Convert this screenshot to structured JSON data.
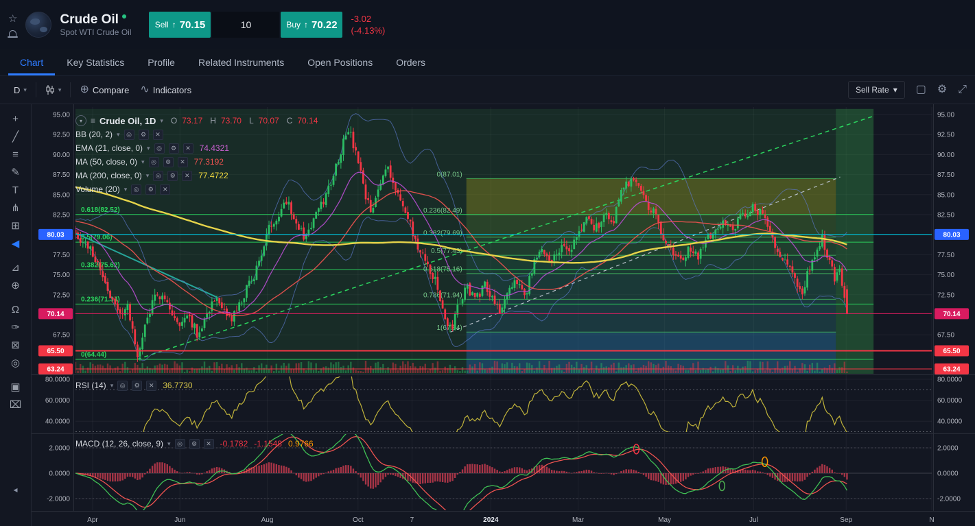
{
  "header": {
    "symbol": "Crude Oil",
    "subtitle": "Spot WTI Crude Oil",
    "sell_label": "Sell",
    "sell_arrow": "↑",
    "sell_price": "70.15",
    "quantity": "10",
    "buy_label": "Buy",
    "buy_arrow": "↑",
    "buy_price": "70.22",
    "change": "-3.02",
    "change_pct": "(-4.13%)",
    "star_glyph": "☆"
  },
  "nav": {
    "tabs": [
      {
        "label": "Chart",
        "active": true
      },
      {
        "label": "Key Statistics",
        "active": false
      },
      {
        "label": "Profile",
        "active": false
      },
      {
        "label": "Related Instruments",
        "active": false
      },
      {
        "label": "Open Positions",
        "active": false
      },
      {
        "label": "Orders",
        "active": false
      }
    ]
  },
  "toolbar": {
    "interval": "D",
    "caret": "▾",
    "compare_icon": "⊕",
    "compare_label": "Compare",
    "indicators_icon": "∿",
    "indicators_label": "Indicators",
    "sell_rate_label": "Sell Rate",
    "snapshot_glyph": "▢",
    "gear_glyph": "⚙",
    "fullscreen_glyph": "⤢"
  },
  "left_toolbar": {
    "collapse_glyph": "◂",
    "tools": [
      {
        "name": "crosshair-tool",
        "glyph": "+"
      },
      {
        "name": "trend-line-tool",
        "glyph": "╱"
      },
      {
        "name": "parallel-lines-tool",
        "glyph": "≡"
      },
      {
        "name": "brush-tool",
        "glyph": "✎"
      },
      {
        "name": "text-tool",
        "glyph": "T"
      },
      {
        "name": "pitchfork-tool",
        "glyph": "⋔"
      },
      {
        "name": "patterns-tool",
        "glyph": "⊞"
      },
      {
        "name": "arrow-tool",
        "glyph": "◀",
        "color": "#2979ff",
        "gap": true
      },
      {
        "name": "ruler-tool",
        "glyph": "⊿"
      },
      {
        "name": "zoom-in-tool",
        "glyph": "⊕",
        "gap": true
      },
      {
        "name": "magnet-tool",
        "glyph": "Ω"
      },
      {
        "name": "draw-tool",
        "glyph": "✑"
      },
      {
        "name": "lock-tool",
        "glyph": "⊠"
      },
      {
        "name": "hide-drawings-tool",
        "glyph": "◎",
        "gap": true
      },
      {
        "name": "object-tree-tool",
        "glyph": "▣"
      },
      {
        "name": "remove-drawings-tool",
        "glyph": "⌧"
      }
    ]
  },
  "legend": {
    "icon_glyphs": {
      "collapse": "▾",
      "menu": "≡",
      "eye": "◎",
      "settings": "⚙",
      "close": "✕"
    },
    "main": {
      "title": "Crude Oil, 1D",
      "ohlc": [
        {
          "k": "O",
          "v": "73.17"
        },
        {
          "k": "H",
          "v": "73.70"
        },
        {
          "k": "L",
          "v": "70.07"
        },
        {
          "k": "C",
          "v": "70.14"
        }
      ]
    },
    "indicators": [
      {
        "name": "BB (20, 2)",
        "value": "",
        "color": ""
      },
      {
        "name": "EMA (21, close, 0)",
        "value": "74.4321",
        "color": "#c95fd0"
      },
      {
        "name": "MA (50, close, 0)",
        "value": "77.3192",
        "color": "#ef5350"
      },
      {
        "name": "MA (200, close, 0)",
        "value": "77.4722",
        "color": "#f0d93f"
      },
      {
        "name": "Volume (20)",
        "value": "",
        "color": ""
      }
    ]
  },
  "rsi_panel": {
    "label": "RSI (14)",
    "value": "36.7730",
    "color": "#d8c84a"
  },
  "macd_panel": {
    "label": "MACD (12, 26, close, 9)",
    "values": [
      {
        "text": "-0.1782",
        "color": "#f23645"
      },
      {
        "text": "-1.1548",
        "color": "#f23645"
      },
      {
        "text": "0.9766",
        "color": "#ff9800"
      }
    ]
  },
  "chart_data": {
    "type": "candlestick",
    "symbol": "Crude Oil, 1D",
    "ohlc_display": {
      "O": 73.17,
      "H": 73.7,
      "L": 70.07,
      "C": 70.14
    },
    "last_price": 70.14,
    "price_ticks": [
      95.0,
      92.5,
      90.0,
      87.5,
      85.0,
      82.5,
      77.5,
      75.0,
      72.5,
      67.5
    ],
    "price_badges": [
      {
        "price": 80.03,
        "bg": "#2962ff",
        "line": "#00bcd4",
        "width": 1.3
      },
      {
        "price": 70.14,
        "bg": "#d81b60",
        "line": "#e91e63",
        "width": 1
      },
      {
        "price": 65.5,
        "bg": "#f23645",
        "line": "#f23645",
        "width": 2
      },
      {
        "price": 63.24,
        "bg": "#f23645",
        "line": "#f23645",
        "width": 1
      }
    ],
    "time_labels": [
      {
        "label": "Apr",
        "f": 0.02
      },
      {
        "label": "Jun",
        "f": 0.122
      },
      {
        "label": "Aug",
        "f": 0.224
      },
      {
        "label": "Oct",
        "f": 0.33
      },
      {
        "label": "7",
        "f": 0.393
      },
      {
        "label": "2024",
        "f": 0.485,
        "major": true
      },
      {
        "label": "Mar",
        "f": 0.587
      },
      {
        "label": "May",
        "f": 0.688
      },
      {
        "label": "Jul",
        "f": 0.792
      },
      {
        "label": "Sep",
        "f": 0.9
      },
      {
        "label": "N",
        "f": 1.0
      }
    ],
    "fib_main": {
      "x0": 0.0,
      "x1": 0.932,
      "color": "#2bd45e",
      "levels": [
        {
          "label": "0.618(82.52)",
          "price": 82.52
        },
        {
          "label": "0.5(79.06)",
          "price": 79.06
        },
        {
          "label": "0.382(75.62)",
          "price": 75.62
        },
        {
          "label": "0.236(71.34)",
          "price": 71.34
        },
        {
          "label": "0(64.44)",
          "price": 64.44
        }
      ]
    },
    "fib_secondary": {
      "x0": 0.4565,
      "x1": 0.888,
      "color": "#3fae5a",
      "levels": [
        {
          "label": "0(87.01)",
          "price": 87.01
        },
        {
          "label": "0.236(82.49)",
          "price": 82.49
        },
        {
          "label": "0.382(79.69)",
          "price": 79.69
        },
        {
          "label": "0.5(77.43)",
          "price": 77.43
        },
        {
          "label": "0.618(75.16)",
          "price": 75.16
        },
        {
          "label": "0.786(71.94)",
          "price": 71.94
        },
        {
          "label": "1(67.84)",
          "price": 67.84
        }
      ],
      "bands": [
        {
          "p0": 87.01,
          "p1": 82.49,
          "color": "rgba(155,150,30,0.38)"
        },
        {
          "p0": 82.49,
          "p1": 79.69,
          "color": "rgba(110,160,50,0.20)"
        },
        {
          "p0": 79.69,
          "p1": 77.43,
          "color": "rgba(70,160,90,0.16)"
        },
        {
          "p0": 77.43,
          "p1": 75.16,
          "color": "rgba(50,165,130,0.13)"
        },
        {
          "p0": 75.16,
          "p1": 71.94,
          "color": "rgba(40,160,170,0.12)"
        },
        {
          "p0": 71.94,
          "p1": 67.84,
          "color": "rgba(45,130,200,0.15)"
        },
        {
          "p0": 67.84,
          "p1": 62.5,
          "color": "rgba(40,120,220,0.30)"
        }
      ]
    },
    "regions": [
      {
        "x0": 0.0,
        "x1": 0.932,
        "p0": 95.7,
        "p1": 62.5,
        "color": "rgba(47,130,60,0.20)"
      },
      {
        "x0": 0.888,
        "x1": 0.932,
        "p0": 95.7,
        "p1": 62.5,
        "color": "rgba(60,170,80,0.22)"
      }
    ],
    "trend_lines": [
      {
        "x0": 0.0,
        "p0": 80.2,
        "x1": 0.165,
        "p1": 72.2,
        "color": "#26a69a",
        "w": 2,
        "dash": ""
      },
      {
        "x0": 0.072,
        "p0": 64.44,
        "x1": 0.932,
        "p1": 94.8,
        "color": "#2bd45e",
        "w": 1.5,
        "dash": "6,5"
      },
      {
        "x0": 0.438,
        "p0": 67.84,
        "x1": 0.893,
        "p1": 87.2,
        "color": "#b9c2cc",
        "w": 1.2,
        "dash": "5,5"
      }
    ],
    "price_path": [
      [
        0.0,
        80.5
      ],
      [
        0.008,
        79.2
      ],
      [
        0.02,
        77.8
      ],
      [
        0.028,
        76.0
      ],
      [
        0.036,
        73.8
      ],
      [
        0.044,
        71.5
      ],
      [
        0.052,
        69.8
      ],
      [
        0.06,
        71.5
      ],
      [
        0.068,
        67.0
      ],
      [
        0.074,
        64.6
      ],
      [
        0.082,
        69.2
      ],
      [
        0.092,
        71.8
      ],
      [
        0.102,
        73.0
      ],
      [
        0.112,
        70.2
      ],
      [
        0.122,
        68.3
      ],
      [
        0.13,
        70.6
      ],
      [
        0.142,
        67.6
      ],
      [
        0.152,
        69.8
      ],
      [
        0.162,
        72.2
      ],
      [
        0.172,
        70.2
      ],
      [
        0.182,
        69.4
      ],
      [
        0.192,
        71.2
      ],
      [
        0.202,
        73.6
      ],
      [
        0.212,
        75.8
      ],
      [
        0.224,
        80.2
      ],
      [
        0.236,
        82.6
      ],
      [
        0.248,
        84.6
      ],
      [
        0.258,
        81.2
      ],
      [
        0.268,
        79.6
      ],
      [
        0.278,
        81.8
      ],
      [
        0.29,
        84.2
      ],
      [
        0.3,
        87.2
      ],
      [
        0.31,
        90.6
      ],
      [
        0.318,
        93.6
      ],
      [
        0.324,
        91.2
      ],
      [
        0.33,
        89.2
      ],
      [
        0.338,
        84.8
      ],
      [
        0.346,
        82.6
      ],
      [
        0.356,
        86.4
      ],
      [
        0.364,
        89.0
      ],
      [
        0.374,
        85.6
      ],
      [
        0.384,
        83.0
      ],
      [
        0.393,
        80.6
      ],
      [
        0.402,
        77.6
      ],
      [
        0.412,
        76.2
      ],
      [
        0.422,
        73.6
      ],
      [
        0.43,
        70.0
      ],
      [
        0.438,
        68.0
      ],
      [
        0.448,
        71.6
      ],
      [
        0.458,
        73.4
      ],
      [
        0.468,
        72.0
      ],
      [
        0.478,
        74.0
      ],
      [
        0.486,
        72.4
      ],
      [
        0.496,
        70.6
      ],
      [
        0.506,
        72.6
      ],
      [
        0.516,
        74.2
      ],
      [
        0.526,
        72.8
      ],
      [
        0.536,
        76.4
      ],
      [
        0.546,
        78.0
      ],
      [
        0.556,
        76.6
      ],
      [
        0.566,
        78.6
      ],
      [
        0.576,
        77.6
      ],
      [
        0.587,
        80.0
      ],
      [
        0.597,
        82.0
      ],
      [
        0.607,
        80.6
      ],
      [
        0.617,
        82.6
      ],
      [
        0.627,
        81.4
      ],
      [
        0.637,
        85.4
      ],
      [
        0.647,
        86.6
      ],
      [
        0.655,
        87.0
      ],
      [
        0.663,
        85.4
      ],
      [
        0.671,
        83.2
      ],
      [
        0.68,
        82.0
      ],
      [
        0.688,
        79.0
      ],
      [
        0.698,
        77.6
      ],
      [
        0.708,
        76.8
      ],
      [
        0.718,
        78.2
      ],
      [
        0.728,
        77.2
      ],
      [
        0.738,
        79.6
      ],
      [
        0.748,
        80.6
      ],
      [
        0.758,
        81.6
      ],
      [
        0.768,
        81.0
      ],
      [
        0.778,
        82.2
      ],
      [
        0.792,
        83.6
      ],
      [
        0.8,
        82.6
      ],
      [
        0.81,
        80.6
      ],
      [
        0.82,
        78.2
      ],
      [
        0.83,
        76.6
      ],
      [
        0.84,
        74.6
      ],
      [
        0.848,
        72.4
      ],
      [
        0.856,
        75.4
      ],
      [
        0.864,
        77.2
      ],
      [
        0.872,
        79.4
      ],
      [
        0.88,
        77.0
      ],
      [
        0.886,
        74.6
      ],
      [
        0.891,
        76.4
      ],
      [
        0.896,
        73.8
      ],
      [
        0.901,
        70.1
      ]
    ],
    "indicators": {
      "ema21": 74.4321,
      "ma50": 77.3192,
      "ma200": 77.4722,
      "rsi": 36.773,
      "macd": [
        -0.1782,
        -1.1548,
        0.9766
      ]
    },
    "rsi_ticks": [
      "80.0000",
      "60.0000",
      "40.0000"
    ],
    "rsi_tick_vals": [
      80,
      60,
      40
    ],
    "macd_ticks": [
      "2.0000",
      "0.0000",
      "-2.0000"
    ],
    "macd_tick_vals": [
      2,
      0,
      -2
    ],
    "macd_markers": [
      {
        "f": 0.655,
        "v": 1.9,
        "color": "#f23645"
      },
      {
        "f": 0.755,
        "v": -1.0,
        "color": "#4caf50"
      },
      {
        "f": 0.805,
        "v": 0.9,
        "color": "#ff9800"
      }
    ],
    "colors": {
      "up": "#2bbd62",
      "down": "#f23645",
      "ma200": "#e6d44a",
      "ma50": "#ef5350",
      "ema21": "#b64ccf",
      "bb": "#5d7bd0",
      "rsi": "#bfb23a",
      "rsi_band": "#9598a1",
      "macd_line": "#3fbf54",
      "macd_signal": "#ef5350",
      "macd_hist": "#bf3a4c",
      "grid": "rgba(255,255,255,0.05)",
      "axis_text": "#b2b5be",
      "pane_border": "#2a2e39",
      "bg": "#131722"
    }
  }
}
